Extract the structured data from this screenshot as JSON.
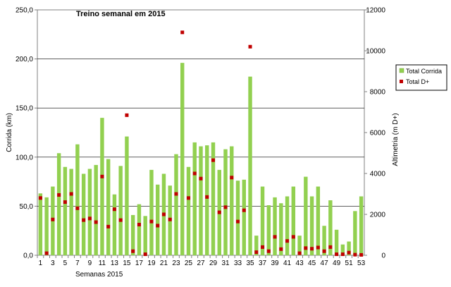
{
  "chart_data": {
    "type": "bar",
    "title": "Treino semanal em 2015",
    "xlabel": "Semanas 2015",
    "ylabel": "Corrida (km)",
    "y2label": "Altimetria (m D+)",
    "ylim": [
      0,
      250
    ],
    "y2lim": [
      0,
      12000
    ],
    "y_ticks": [
      "0,0",
      "50,0",
      "100,0",
      "150,0",
      "200,0",
      "250,0"
    ],
    "y2_ticks": [
      "0",
      "2000",
      "4000",
      "6000",
      "8000",
      "10000",
      "12000"
    ],
    "x_ticks": [
      "1",
      "3",
      "5",
      "7",
      "9",
      "11",
      "13",
      "15",
      "17",
      "19",
      "21",
      "23",
      "25",
      "27",
      "29",
      "31",
      "33",
      "35",
      "37",
      "39",
      "41",
      "43",
      "45",
      "47",
      "49",
      "51",
      "53"
    ],
    "grid": true,
    "legend_position": "right",
    "categories": [
      1,
      2,
      3,
      4,
      5,
      6,
      7,
      8,
      9,
      10,
      11,
      12,
      13,
      14,
      15,
      16,
      17,
      18,
      19,
      20,
      21,
      22,
      23,
      24,
      25,
      26,
      27,
      28,
      29,
      30,
      31,
      32,
      33,
      34,
      35,
      36,
      37,
      38,
      39,
      40,
      41,
      42,
      43,
      44,
      45,
      46,
      47,
      48,
      49,
      50,
      51,
      52,
      53
    ],
    "series": [
      {
        "name": "Total Corrida",
        "kind": "bar",
        "axis": "left",
        "color": "#92d050",
        "values": [
          63,
          59,
          70,
          104,
          90,
          88,
          113,
          83,
          88,
          92,
          140,
          98,
          62,
          91,
          121,
          41,
          52,
          40,
          87,
          72,
          83,
          71,
          103,
          196,
          90,
          115,
          111,
          112,
          115,
          87,
          108,
          111,
          76,
          77,
          182,
          20,
          70,
          51,
          59,
          53,
          60,
          70,
          20,
          80,
          60,
          70,
          30,
          56,
          26,
          11,
          14,
          45,
          60
        ]
      },
      {
        "name": "Total D+",
        "kind": "marker",
        "axis": "right",
        "color": "#c00000",
        "values": [
          2800,
          100,
          1750,
          2950,
          2600,
          3000,
          2300,
          1720,
          1800,
          1620,
          3850,
          1400,
          2250,
          1720,
          6850,
          200,
          1500,
          50,
          1650,
          1450,
          2000,
          1750,
          3000,
          10900,
          2800,
          4000,
          3750,
          2850,
          4650,
          2100,
          2350,
          3800,
          1650,
          2200,
          10200,
          150,
          400,
          200,
          900,
          300,
          700,
          900,
          100,
          350,
          320,
          380,
          200,
          400,
          50,
          50,
          130,
          30,
          20
        ]
      }
    ]
  }
}
